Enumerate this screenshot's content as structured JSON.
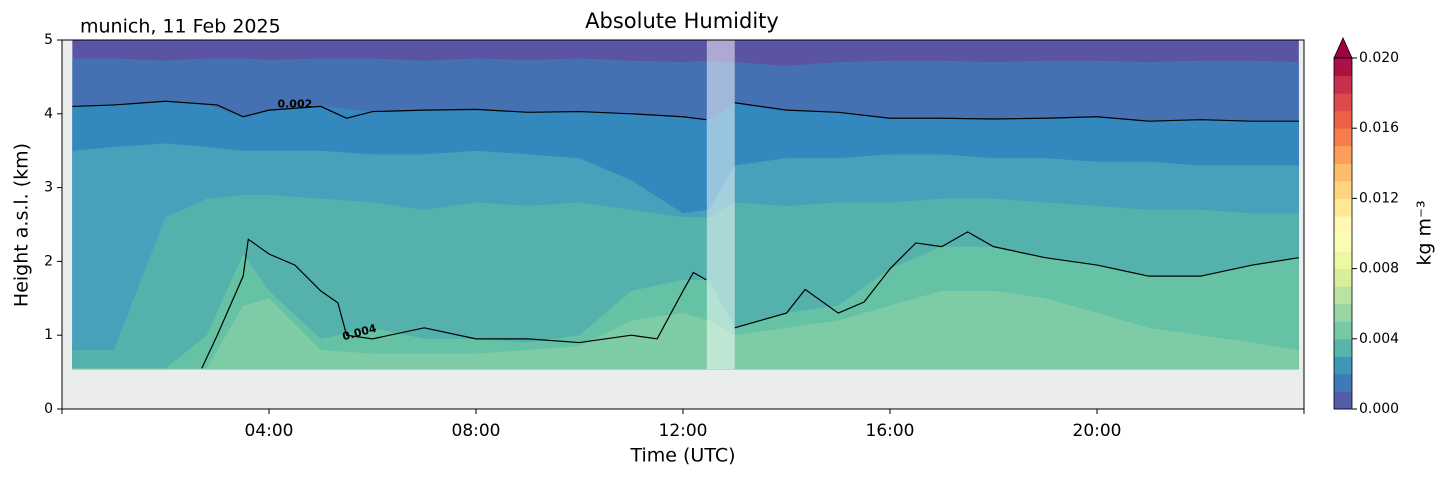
{
  "chart_data": {
    "type": "contour",
    "title": "Absolute Humidity",
    "subtitle": "munich, 11 Feb 2025",
    "x_label": "Time (UTC)",
    "y_label": "Height a.s.l. (km)",
    "xlim": [
      0,
      24
    ],
    "xticks": [
      {
        "value": 4,
        "label": "04:00"
      },
      {
        "value": 8,
        "label": "08:00"
      },
      {
        "value": 12,
        "label": "12:00"
      },
      {
        "value": 16,
        "label": "16:00"
      },
      {
        "value": 20,
        "label": "20:00"
      }
    ],
    "ylim": [
      0,
      5
    ],
    "yticks": [
      0,
      1,
      2,
      3,
      4,
      5
    ],
    "base": 0.54,
    "masked_interval": [
      12.46,
      13.0
    ],
    "band_x": [
      0.2,
      1,
      2,
      2.8,
      3.5,
      4,
      5,
      6,
      7,
      8,
      9,
      10,
      11,
      12,
      12.5,
      13,
      14,
      15,
      16,
      17,
      18,
      19,
      20,
      21,
      22,
      23,
      23.9
    ],
    "bands": [
      {
        "color": "#5b53a4",
        "top": [
          5,
          5,
          5,
          5,
          5,
          5,
          5,
          5,
          5,
          5,
          5,
          5,
          5,
          5,
          5,
          5,
          5,
          5,
          5,
          5,
          5,
          5,
          5,
          5,
          5,
          5,
          5
        ]
      },
      {
        "color": "#4571b3",
        "top": [
          4.75,
          4.75,
          4.72,
          4.75,
          4.75,
          4.73,
          4.75,
          4.75,
          4.72,
          4.75,
          4.73,
          4.75,
          4.72,
          4.7,
          4.72,
          4.7,
          4.65,
          4.7,
          4.72,
          4.72,
          4.7,
          4.72,
          4.72,
          4.7,
          4.72,
          4.72,
          4.7
        ]
      },
      {
        "color": "#3388bd",
        "top": [
          4.1,
          4.12,
          4.17,
          4.12,
          3.96,
          4.05,
          4.1,
          4.03,
          4.05,
          4.06,
          4.02,
          4.03,
          4.0,
          3.96,
          3.92,
          4.15,
          4.05,
          4.02,
          3.94,
          3.94,
          3.93,
          3.94,
          3.96,
          3.9,
          3.92,
          3.9,
          3.9
        ]
      },
      {
        "color": "#48a0bb",
        "top": [
          3.5,
          3.55,
          3.6,
          3.55,
          3.5,
          3.5,
          3.5,
          3.45,
          3.45,
          3.5,
          3.45,
          3.4,
          3.1,
          2.65,
          2.7,
          3.3,
          3.4,
          3.4,
          3.45,
          3.45,
          3.4,
          3.4,
          3.35,
          3.35,
          3.3,
          3.3,
          3.3
        ]
      },
      {
        "color": "#55b1ab",
        "top": [
          0.8,
          0.8,
          2.6,
          2.85,
          2.9,
          2.9,
          2.85,
          2.8,
          2.7,
          2.8,
          2.75,
          2.8,
          2.7,
          2.6,
          2.6,
          2.8,
          2.75,
          2.8,
          2.8,
          2.85,
          2.85,
          2.8,
          2.75,
          2.7,
          2.7,
          2.65,
          2.65
        ]
      },
      {
        "color": "#66c2a5",
        "top": [
          0.55,
          0.55,
          0.55,
          1.0,
          2.1,
          1.6,
          0.95,
          1.1,
          0.95,
          0.95,
          0.9,
          1.0,
          1.6,
          1.75,
          1.75,
          1.1,
          1.3,
          1.4,
          1.9,
          2.2,
          2.2,
          2.05,
          1.95,
          1.8,
          1.8,
          1.95,
          2.05
        ]
      },
      {
        "color": "#7ecca6",
        "top": [
          0.55,
          0.55,
          0.55,
          0.55,
          1.4,
          1.5,
          0.8,
          0.75,
          0.75,
          0.75,
          0.8,
          0.85,
          1.2,
          1.3,
          1.2,
          1.0,
          1.1,
          1.2,
          1.4,
          1.6,
          1.6,
          1.5,
          1.3,
          1.1,
          1.0,
          0.9,
          0.8
        ]
      }
    ],
    "contours": [
      {
        "label": "0.002",
        "x": [
          0.2,
          1,
          2,
          3,
          3.5,
          4,
          5,
          5.5,
          6,
          7,
          8,
          9,
          10,
          11,
          12,
          12.45,
          12.7,
          13,
          14,
          15,
          16,
          17,
          18,
          19,
          20,
          21,
          22,
          23,
          23.9
        ],
        "y": [
          4.1,
          4.12,
          4.17,
          4.12,
          3.96,
          4.05,
          4.1,
          3.94,
          4.03,
          4.05,
          4.06,
          4.02,
          4.03,
          4.0,
          3.96,
          3.92,
          null,
          4.15,
          4.05,
          4.02,
          3.94,
          3.94,
          3.93,
          3.94,
          3.96,
          3.9,
          3.92,
          3.9,
          3.9
        ]
      },
      {
        "label": "0.004",
        "x": [
          2.7,
          3,
          3.5,
          3.6,
          4,
          4.5,
          5,
          5.33,
          5.5,
          6,
          7,
          8,
          9,
          10,
          11,
          11.5,
          12,
          12.2,
          12.45,
          12.7,
          13,
          14,
          14.36,
          15,
          15.5,
          16,
          16.5,
          17,
          17.5,
          18,
          19,
          20,
          21,
          22,
          23,
          23.9
        ],
        "y": [
          0.55,
          1.0,
          1.8,
          2.3,
          2.1,
          1.95,
          1.6,
          1.44,
          1.0,
          0.95,
          1.1,
          0.95,
          0.95,
          0.9,
          1.0,
          0.95,
          1.6,
          1.85,
          1.75,
          null,
          1.1,
          1.3,
          1.62,
          1.3,
          1.45,
          1.9,
          2.25,
          2.2,
          2.4,
          2.2,
          2.05,
          1.95,
          1.8,
          1.8,
          1.95,
          2.05
        ]
      }
    ],
    "colorbar": {
      "label": "kg m⁻³",
      "clim": [
        0,
        0.02
      ],
      "ticks": [
        {
          "value": 0,
          "label": "0.000"
        },
        {
          "value": 0.004,
          "label": "0.004"
        },
        {
          "value": 0.008,
          "label": "0.008"
        },
        {
          "value": 0.012,
          "label": "0.012"
        },
        {
          "value": 0.016,
          "label": "0.016"
        },
        {
          "value": 0.02,
          "label": "0.020"
        }
      ],
      "colormap": [
        "#5e4fa2",
        "#3288bd",
        "#66c2a5",
        "#abdda4",
        "#e6f598",
        "#ffffbf",
        "#fee08b",
        "#fdae61",
        "#f46d43",
        "#d53e4f",
        "#9e0142"
      ]
    }
  }
}
